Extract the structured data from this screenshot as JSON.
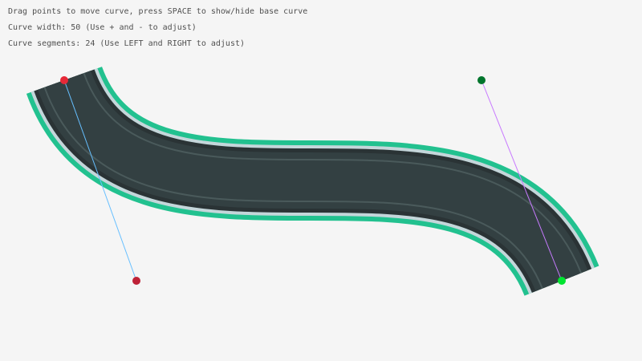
{
  "instructions": [
    "Drag points to move curve, press SPACE to show/hide base curve",
    "Curve width: 50 (Use + and - to adjust)",
    "Curve segments: 24 (Use LEFT and RIGHT to adjust)"
  ],
  "curve": {
    "width": 50,
    "segments": 24,
    "start": [
      80,
      100
    ],
    "control_start": [
      170,
      350
    ],
    "control_end": [
      600,
      100
    ],
    "end": [
      700,
      350
    ]
  },
  "colors": {
    "background": "#f5f5f5",
    "road_border": "#22c18f",
    "road_edge": "#c4d6da",
    "road_dark": "#2a3335",
    "road": "#334042",
    "lane": "#4a5a5b",
    "start_point": "#e62937",
    "control_start_point": "#be2137",
    "control_end_point": "#00752c",
    "end_point": "#00e430",
    "handle_start_line": "#66bfff",
    "handle_end_line": "#c87aff"
  }
}
